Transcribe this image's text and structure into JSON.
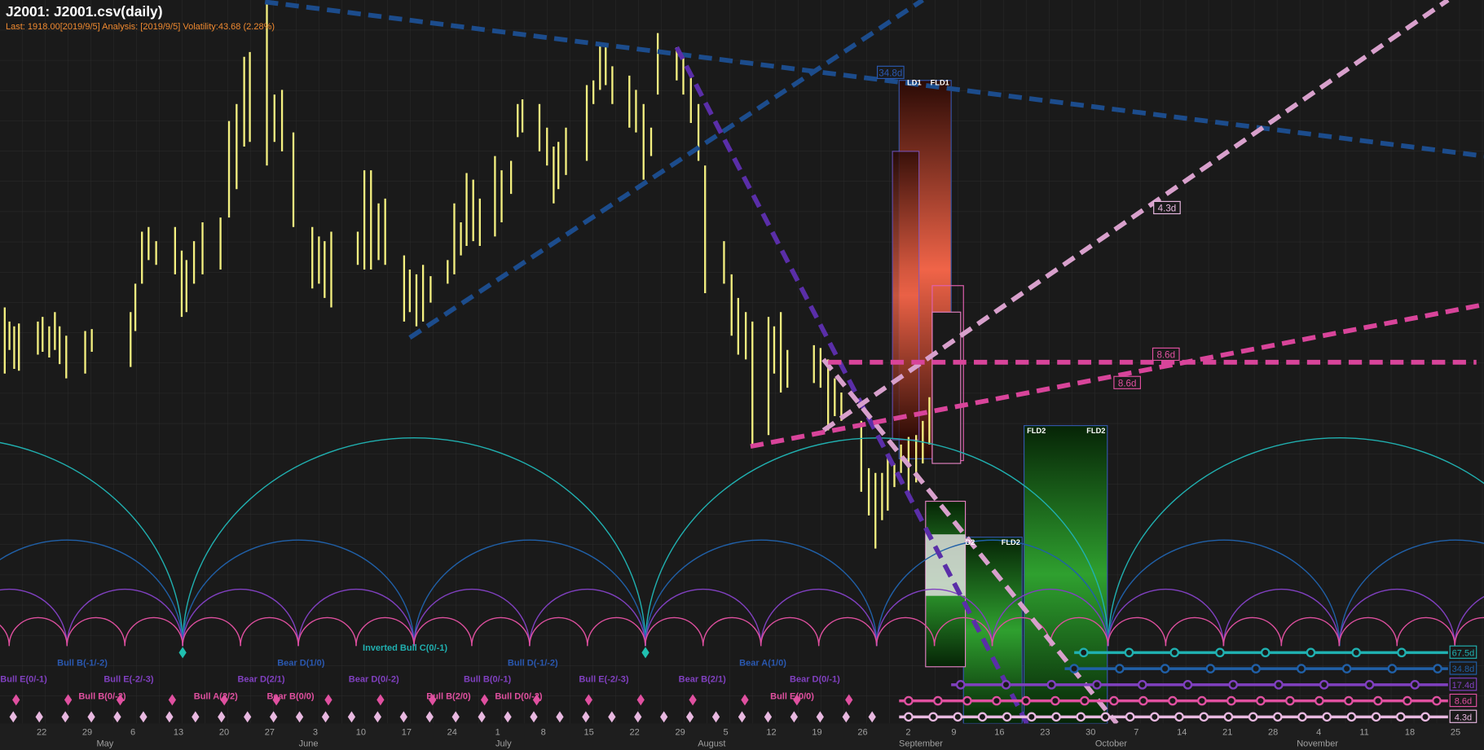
{
  "header": {
    "title": "J2001: J2001.csv(daily)",
    "info": "Last: 1918.00[2019/9/5] Analysis: [2019/9/5] Volatility:43.68 (2.28%)"
  },
  "x_axis": {
    "days": [
      "22",
      "29",
      "6",
      "13",
      "20",
      "27",
      "3",
      "10",
      "17",
      "24",
      "1",
      "8",
      "15",
      "22",
      "29",
      "5",
      "12",
      "19",
      "26",
      "2",
      "9",
      "16",
      "23",
      "30",
      "7",
      "14",
      "21",
      "28",
      "4",
      "11",
      "18",
      "25"
    ],
    "months": [
      "May",
      "June",
      "July",
      "August",
      "September",
      "October",
      "November"
    ]
  },
  "cycle_labels": [
    "Inverted Bull C(0/-1)",
    "Bull B(-1/-2)",
    "Bear D(1/0)",
    "Bull D(-1/-2)",
    "Bear A(1/0)",
    "Bull E(0/-1)",
    "Bull E(-2/-3)",
    "Bear D(2/1)",
    "Bear D(0/-2)",
    "Bull B(0/-1)",
    "Bull E(-2/-3)",
    "Bear B(2/1)",
    "Bear D(0/-1)",
    "Bull B(0/-2)",
    "Bull A(2/2)",
    "Bear B(0/0)",
    "Bull B(2/0)",
    "Bull D(0/-2)",
    "Bull E(0/0)"
  ],
  "line_tags": [
    "34.8d",
    "4.3d",
    "8.6d",
    "8.6d"
  ],
  "fld_labels": [
    "LD1",
    "FLD1",
    "FLD2",
    "FLD2",
    "D2",
    "FLD2"
  ],
  "period_tags": [
    "67.5d",
    "34.8d",
    "17.4d",
    "8.6d",
    "4.3d"
  ]
}
